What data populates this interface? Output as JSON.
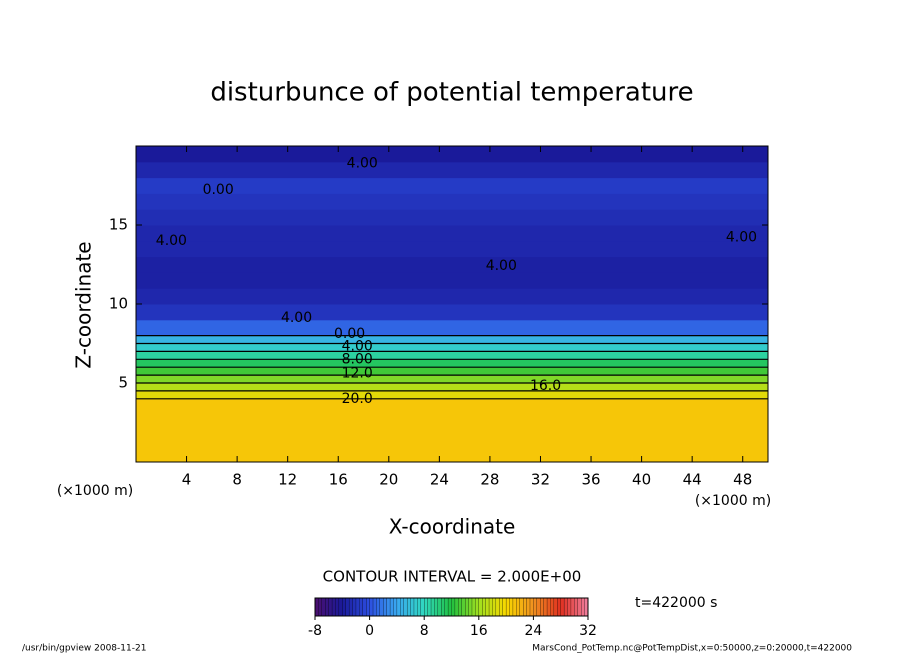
{
  "chart_data": {
    "type": "contour",
    "title": "disturbunce of potential temperature",
    "xlabel": "X-coordinate",
    "ylabel": "Z-coordinate",
    "x_unit": "(×1000 m)",
    "x_unit_right": "(×1000 m)",
    "xlim": [
      0,
      50
    ],
    "xticks": [
      4,
      8,
      12,
      16,
      20,
      24,
      28,
      32,
      36,
      40,
      44,
      48
    ],
    "ylim": [
      0,
      20
    ],
    "yticks": [
      5,
      10,
      15
    ],
    "zbins": [
      0,
      1,
      2,
      3,
      4,
      4.5,
      5,
      5.5,
      6,
      6.5,
      7,
      7.5,
      8,
      9,
      10,
      11,
      12,
      13,
      14,
      15,
      16,
      17,
      18,
      19,
      20
    ],
    "values": [
      21,
      21,
      21,
      21,
      19,
      17,
      15,
      13,
      11,
      9,
      7,
      5,
      1,
      -2,
      -3,
      -3.5,
      -3.5,
      -3,
      -3,
      -2.5,
      -2,
      -1.5,
      -3,
      -4
    ],
    "colormap": [
      "#4b0f6e",
      "#1a1a9a",
      "#2c4ee0",
      "#3aa8f0",
      "#30d8c0",
      "#20c040",
      "#a0e020",
      "#f8d800",
      "#f09020",
      "#e03020",
      "#f080a0"
    ],
    "clim": [
      -8,
      32
    ],
    "cticks": [
      -8,
      0,
      8,
      16,
      24,
      32
    ],
    "contour_interval": "CONTOUR INTERVAL = 2.000E+00",
    "time_label": "t=422000 s",
    "annotations": [
      {
        "text": "4.00",
        "x": 17.9,
        "y": 18.9
      },
      {
        "text": "0.00",
        "x": 6.5,
        "y": 17.2
      },
      {
        "text": "4.00",
        "x": 2.8,
        "y": 14
      },
      {
        "text": "4.00",
        "x": 28.9,
        "y": 12.4
      },
      {
        "text": "4.00",
        "x": 47.9,
        "y": 14.2
      },
      {
        "text": "4.00",
        "x": 12.7,
        "y": 9.1
      },
      {
        "text": "0.00",
        "x": 16.9,
        "y": 8.1
      },
      {
        "text": "4.00",
        "x": 17.5,
        "y": 7.3
      },
      {
        "text": "8.00",
        "x": 17.5,
        "y": 6.5
      },
      {
        "text": "12.0",
        "x": 17.5,
        "y": 5.6
      },
      {
        "text": "16.0",
        "x": 32.4,
        "y": 4.8
      },
      {
        "text": "20.0",
        "x": 17.5,
        "y": 4.0
      }
    ],
    "footer_left": "/usr/bin/gpview   2008-11-21",
    "footer_right": "MarsCond_PotTemp.nc@PotTempDist,x=0:50000,z=0:20000,t=422000"
  }
}
